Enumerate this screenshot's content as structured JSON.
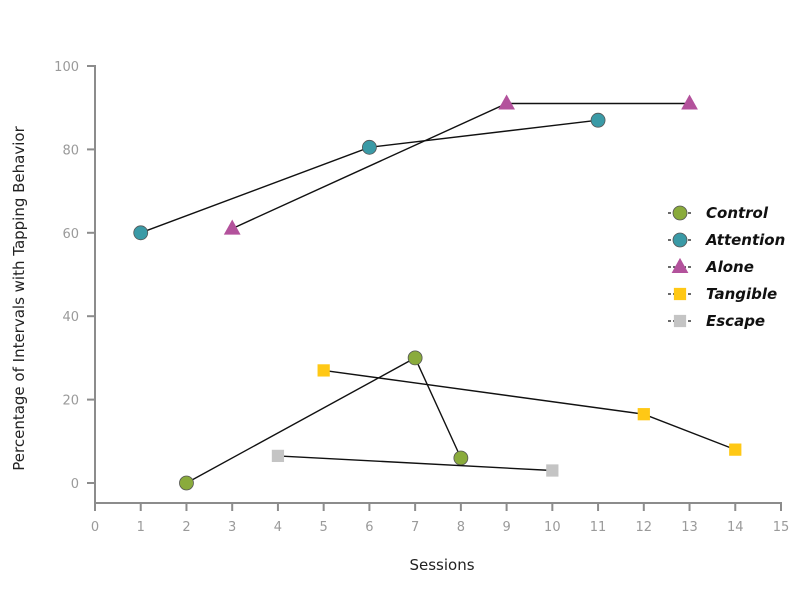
{
  "chart_data": {
    "type": "line",
    "xlabel": "Sessions",
    "ylabel": "Percentage of Intervals with Tapping Behavior",
    "xlim": [
      0,
      15
    ],
    "ylim": [
      0,
      100
    ],
    "xticks": [
      "0",
      "1",
      "2",
      "3",
      "4",
      "5",
      "6",
      "7",
      "8",
      "9",
      "10",
      "11",
      "12",
      "13",
      "14",
      "15"
    ],
    "yticks": [
      "0",
      "20",
      "40",
      "60",
      "80",
      "100"
    ],
    "grid": false,
    "legend_position": "right",
    "series": [
      {
        "name": "Control",
        "marker": "circle",
        "color": "#8aab3c",
        "points": [
          [
            2,
            0
          ],
          [
            7,
            30
          ],
          [
            8,
            6
          ]
        ]
      },
      {
        "name": "Attention",
        "marker": "circle",
        "color": "#3a9aa6",
        "points": [
          [
            1,
            60
          ],
          [
            6,
            80.5
          ],
          [
            11,
            87
          ]
        ]
      },
      {
        "name": "Alone",
        "marker": "triangle",
        "color": "#b3529c",
        "points": [
          [
            3,
            61
          ],
          [
            9,
            91
          ],
          [
            13,
            91
          ]
        ]
      },
      {
        "name": "Tangible",
        "marker": "square",
        "color": "#ffc815",
        "points": [
          [
            5,
            27
          ],
          [
            12,
            16.5
          ],
          [
            14,
            8
          ]
        ]
      },
      {
        "name": "Escape",
        "marker": "square",
        "color": "#c4c4c4",
        "points": [
          [
            4,
            6.5
          ],
          [
            10,
            3
          ]
        ]
      }
    ]
  }
}
